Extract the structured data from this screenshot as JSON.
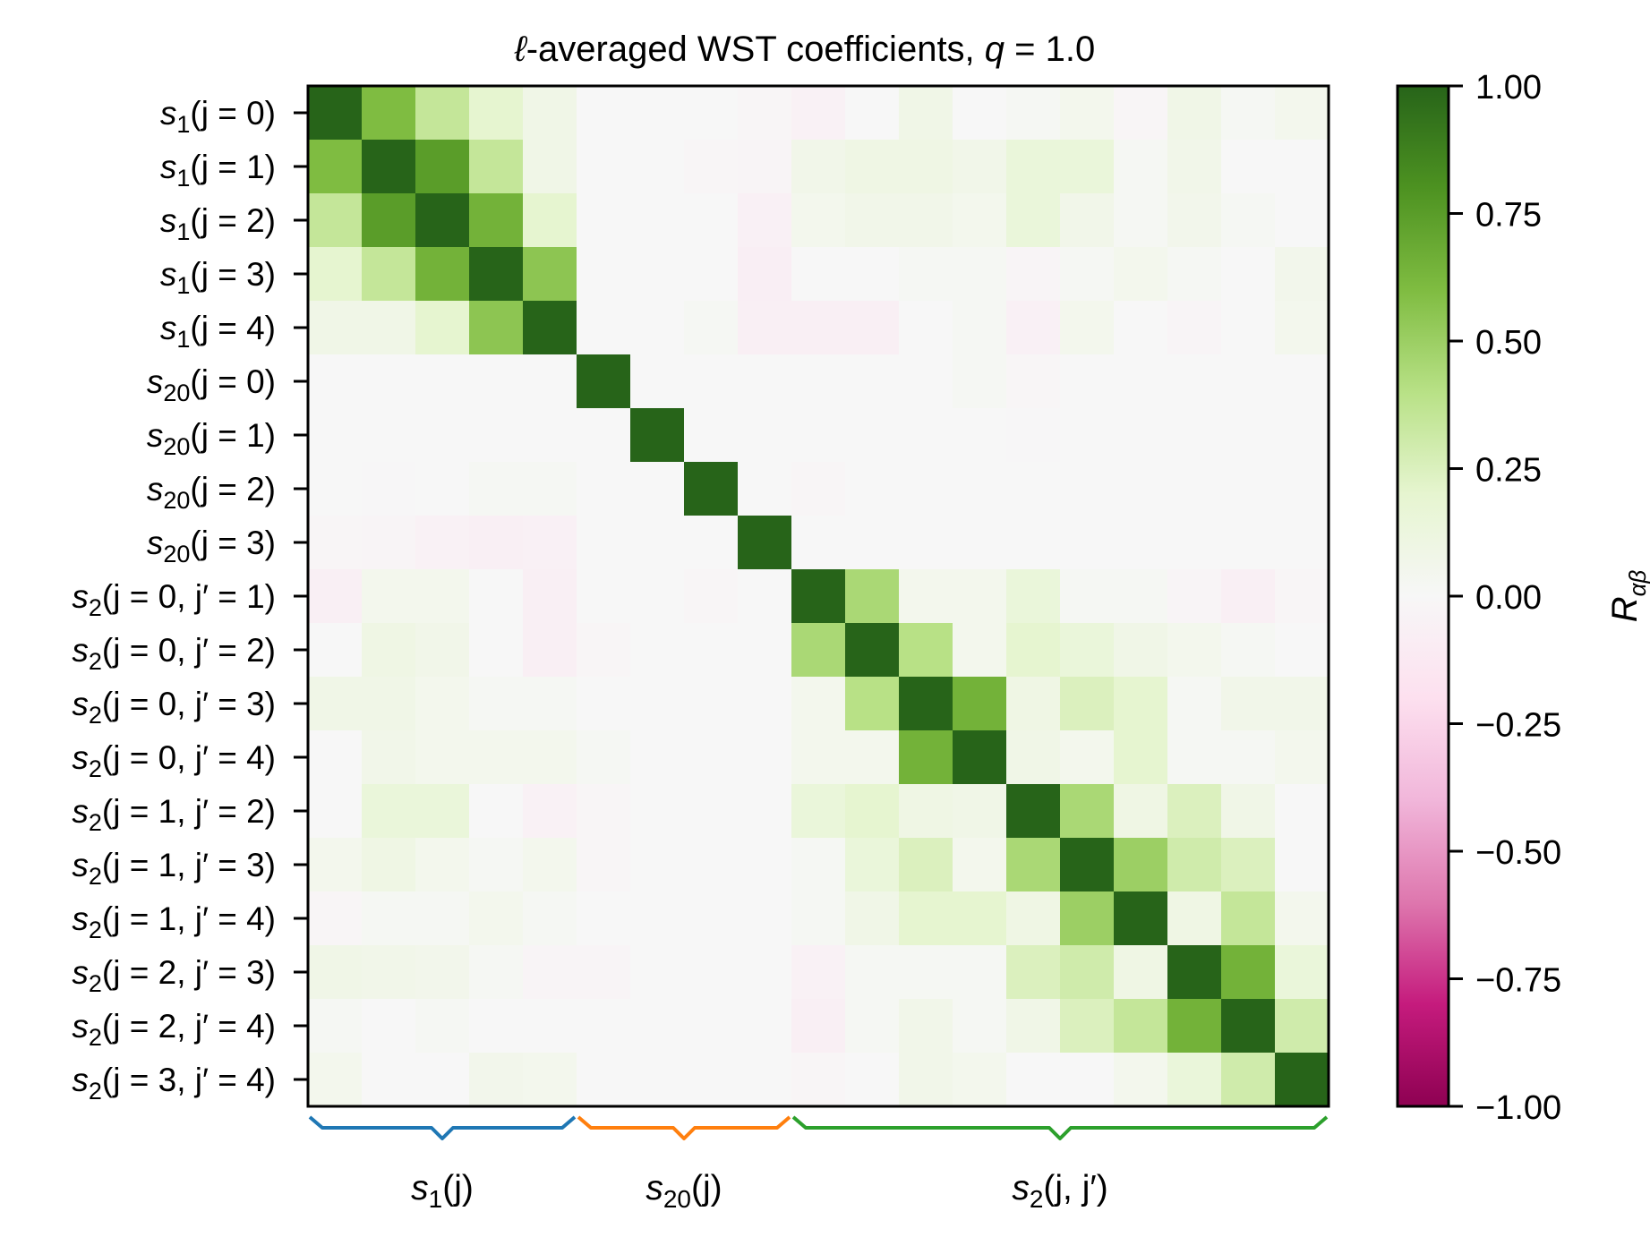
{
  "chart_data": {
    "type": "heatmap",
    "title_parts": [
      "ℓ",
      "-averaged WST coefficients, ",
      "q",
      " = 1.0"
    ],
    "title": "ℓ-averaged WST coefficients, q = 1.0",
    "row_labels": [
      {
        "base": "s",
        "sub": "1",
        "rest": "(j = 0)"
      },
      {
        "base": "s",
        "sub": "1",
        "rest": "(j = 1)"
      },
      {
        "base": "s",
        "sub": "1",
        "rest": "(j = 2)"
      },
      {
        "base": "s",
        "sub": "1",
        "rest": "(j = 3)"
      },
      {
        "base": "s",
        "sub": "1",
        "rest": "(j = 4)"
      },
      {
        "base": "s",
        "sub": "20",
        "rest": "(j = 0)"
      },
      {
        "base": "s",
        "sub": "20",
        "rest": "(j = 1)"
      },
      {
        "base": "s",
        "sub": "20",
        "rest": "(j = 2)"
      },
      {
        "base": "s",
        "sub": "20",
        "rest": "(j = 3)"
      },
      {
        "base": "s",
        "sub": "2",
        "rest": "(j = 0, j′ = 1)"
      },
      {
        "base": "s",
        "sub": "2",
        "rest": "(j = 0, j′ = 2)"
      },
      {
        "base": "s",
        "sub": "2",
        "rest": "(j = 0, j′ = 3)"
      },
      {
        "base": "s",
        "sub": "2",
        "rest": "(j = 0, j′ = 4)"
      },
      {
        "base": "s",
        "sub": "2",
        "rest": "(j = 1, j′ = 2)"
      },
      {
        "base": "s",
        "sub": "2",
        "rest": "(j = 1, j′ = 3)"
      },
      {
        "base": "s",
        "sub": "2",
        "rest": "(j = 1, j′ = 4)"
      },
      {
        "base": "s",
        "sub": "2",
        "rest": "(j = 2, j′ = 3)"
      },
      {
        "base": "s",
        "sub": "2",
        "rest": "(j = 2, j′ = 4)"
      },
      {
        "base": "s",
        "sub": "2",
        "rest": "(j = 3, j′ = 4)"
      }
    ],
    "matrix": [
      [
        1.0,
        0.6,
        0.35,
        0.2,
        0.08,
        0.0,
        0.0,
        0.0,
        -0.02,
        -0.05,
        0.0,
        0.08,
        0.0,
        0.02,
        0.05,
        -0.02,
        0.08,
        0.02,
        0.05
      ],
      [
        0.6,
        1.0,
        0.75,
        0.35,
        0.08,
        0.0,
        0.0,
        -0.02,
        -0.03,
        0.07,
        0.1,
        0.1,
        0.07,
        0.15,
        0.15,
        0.02,
        0.07,
        0.0,
        0.0
      ],
      [
        0.35,
        0.75,
        1.0,
        0.65,
        0.2,
        0.0,
        0.0,
        0.0,
        -0.06,
        0.05,
        0.07,
        0.07,
        0.05,
        0.15,
        0.07,
        0.02,
        0.06,
        0.02,
        0.0
      ],
      [
        0.2,
        0.35,
        0.65,
        1.0,
        0.55,
        0.0,
        0.0,
        0.0,
        -0.08,
        0.0,
        0.0,
        0.02,
        0.02,
        -0.03,
        0.02,
        0.05,
        0.02,
        0.0,
        0.06
      ],
      [
        0.08,
        0.08,
        0.2,
        0.55,
        1.0,
        0.0,
        0.0,
        0.02,
        -0.07,
        -0.07,
        -0.07,
        0.0,
        0.02,
        -0.06,
        0.05,
        0.0,
        -0.03,
        0.0,
        0.05
      ],
      [
        0.0,
        0.0,
        0.0,
        0.0,
        0.0,
        1.0,
        0.0,
        0.0,
        0.0,
        0.0,
        0.0,
        0.0,
        0.02,
        -0.02,
        0.0,
        0.0,
        0.0,
        0.0,
        0.0
      ],
      [
        0.0,
        0.0,
        0.0,
        0.0,
        0.0,
        0.0,
        1.0,
        0.0,
        0.0,
        0.0,
        0.0,
        0.0,
        0.0,
        -0.01,
        0.0,
        0.0,
        0.0,
        0.0,
        0.0
      ],
      [
        0.0,
        -0.01,
        0.0,
        0.02,
        0.02,
        0.0,
        0.0,
        1.0,
        0.0,
        -0.02,
        0.0,
        0.0,
        0.0,
        0.0,
        0.0,
        0.0,
        0.0,
        0.0,
        0.0
      ],
      [
        -0.02,
        -0.03,
        -0.05,
        -0.07,
        -0.06,
        0.0,
        0.0,
        0.0,
        1.0,
        0.0,
        0.0,
        0.0,
        0.0,
        0.0,
        0.0,
        0.0,
        0.0,
        0.0,
        0.0
      ],
      [
        -0.07,
        0.05,
        0.05,
        0.0,
        -0.07,
        0.0,
        0.0,
        -0.02,
        0.0,
        1.0,
        0.45,
        0.05,
        0.05,
        0.15,
        0.02,
        0.02,
        -0.03,
        -0.07,
        -0.02
      ],
      [
        0.0,
        0.1,
        0.07,
        0.0,
        -0.07,
        -0.02,
        0.0,
        0.0,
        0.0,
        0.45,
        1.0,
        0.4,
        0.05,
        0.2,
        0.15,
        0.08,
        0.05,
        0.02,
        0.0
      ],
      [
        0.08,
        0.08,
        0.05,
        0.02,
        0.02,
        0.0,
        0.0,
        0.0,
        0.0,
        0.05,
        0.4,
        1.0,
        0.65,
        0.1,
        0.25,
        0.2,
        0.02,
        0.07,
        0.07
      ],
      [
        0.0,
        0.07,
        0.05,
        0.05,
        0.05,
        0.02,
        0.0,
        0.0,
        0.0,
        0.05,
        0.05,
        0.65,
        1.0,
        0.08,
        0.05,
        0.2,
        0.02,
        0.02,
        0.05
      ],
      [
        0.0,
        0.15,
        0.15,
        0.0,
        -0.05,
        -0.02,
        0.0,
        0.0,
        0.0,
        0.15,
        0.2,
        0.1,
        0.08,
        1.0,
        0.45,
        0.1,
        0.25,
        0.08,
        0.0
      ],
      [
        0.05,
        0.1,
        0.05,
        0.02,
        0.05,
        -0.02,
        0.0,
        0.0,
        0.0,
        0.02,
        0.15,
        0.25,
        0.05,
        0.45,
        1.0,
        0.5,
        0.3,
        0.25,
        0.0
      ],
      [
        -0.02,
        0.02,
        0.02,
        0.05,
        0.02,
        0.0,
        0.0,
        0.0,
        0.0,
        0.02,
        0.08,
        0.2,
        0.2,
        0.1,
        0.5,
        1.0,
        0.1,
        0.35,
        0.05
      ],
      [
        0.08,
        0.07,
        0.06,
        0.02,
        -0.03,
        -0.03,
        0.0,
        0.0,
        0.0,
        -0.05,
        0.02,
        0.02,
        0.02,
        0.25,
        0.3,
        0.1,
        1.0,
        0.65,
        0.15
      ],
      [
        0.02,
        0.0,
        0.02,
        0.0,
        0.0,
        0.0,
        0.0,
        0.0,
        0.0,
        -0.07,
        0.02,
        0.07,
        0.02,
        0.08,
        0.25,
        0.35,
        0.65,
        1.0,
        0.3
      ],
      [
        0.05,
        0.0,
        0.0,
        0.06,
        0.05,
        0.0,
        0.0,
        0.0,
        0.0,
        -0.02,
        0.0,
        0.07,
        0.05,
        0.0,
        0.0,
        0.05,
        0.15,
        0.3,
        1.0
      ]
    ],
    "colorbar": {
      "label": "R",
      "label_sub": "αβ",
      "vmin": -1.0,
      "vmax": 1.0,
      "ticks": [
        1.0,
        0.75,
        0.5,
        0.25,
        0.0,
        -0.25,
        -0.5,
        -0.75,
        -1.0
      ],
      "tick_labels": [
        "1.00",
        "0.75",
        "0.50",
        "0.25",
        "0.00",
        "−0.25",
        "−0.50",
        "−0.75",
        "−1.00"
      ]
    },
    "groups": [
      {
        "base": "s",
        "sub": "1",
        "rest": "(j)",
        "start": 0,
        "end": 5,
        "color": "#1f77b4"
      },
      {
        "base": "s",
        "sub": "20",
        "rest": "(j)",
        "start": 5,
        "end": 9,
        "color": "#ff7f0e"
      },
      {
        "base": "s",
        "sub": "2",
        "rest": "(j, j′)",
        "start": 9,
        "end": 19,
        "color": "#2ca02c"
      }
    ],
    "colormap": [
      "#8e0152",
      "#c51b7d",
      "#de77ae",
      "#f1b6da",
      "#fde0ef",
      "#f7f7f7",
      "#e6f5d0",
      "#b8e186",
      "#7fbc41",
      "#4d9221",
      "#276419"
    ]
  }
}
